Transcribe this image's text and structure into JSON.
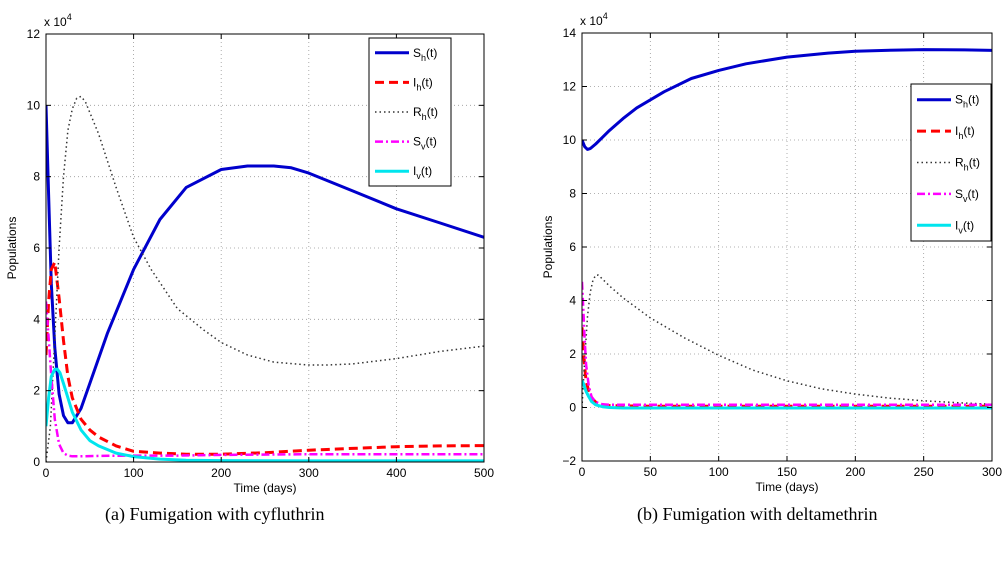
{
  "charts": [
    {
      "caption": "(a)  Fumigation with cyfluthrin",
      "chart_data": {
        "type": "line",
        "xlabel": "Time (days)",
        "ylabel": "Populations",
        "exponent_label": "x 10",
        "exponent_power": "4",
        "xlim": [
          0,
          500
        ],
        "ylim": [
          0,
          12
        ],
        "xticks": [
          0,
          100,
          200,
          300,
          400,
          500
        ],
        "yticks": [
          0,
          2,
          4,
          6,
          8,
          10,
          12
        ],
        "grid": true,
        "legend_position": "top-right",
        "series": [
          {
            "name": "S",
            "sub": "h",
            "suffix": "(t)",
            "color": "#0000cc",
            "style": "solid",
            "x": [
              0,
              3,
              6,
              10,
              15,
              20,
              25,
              30,
              40,
              50,
              70,
              100,
              130,
              160,
              200,
              230,
              260,
              280,
              300,
              350,
              400,
              450,
              500
            ],
            "y": [
              10,
              7.5,
              5,
              3.2,
              1.9,
              1.3,
              1.1,
              1.1,
              1.5,
              2.2,
              3.6,
              5.4,
              6.8,
              7.7,
              8.2,
              8.3,
              8.3,
              8.25,
              8.1,
              7.6,
              7.1,
              6.7,
              6.3
            ]
          },
          {
            "name": "I",
            "sub": "h",
            "suffix": "(t)",
            "color": "#ff0000",
            "style": "dashed",
            "x": [
              0,
              3,
              6,
              10,
              15,
              20,
              25,
              30,
              40,
              50,
              60,
              80,
              100,
              130,
              160,
              200,
              250,
              300,
              350,
              400,
              450,
              500
            ],
            "y": [
              3,
              4.5,
              5.4,
              5.6,
              4.6,
              3.4,
              2.4,
              1.8,
              1.2,
              0.9,
              0.7,
              0.45,
              0.3,
              0.25,
              0.22,
              0.22,
              0.26,
              0.33,
              0.38,
              0.43,
              0.45,
              0.46
            ]
          },
          {
            "name": "R",
            "sub": "h",
            "suffix": "(t)",
            "color": "#333333",
            "style": "dotted",
            "x": [
              0,
              5,
              10,
              15,
              20,
              25,
              30,
              35,
              40,
              45,
              50,
              60,
              80,
              100,
              120,
              150,
              180,
              200,
              230,
              260,
              300,
              320,
              350,
              400,
              450,
              500
            ],
            "y": [
              0,
              1,
              3.5,
              6,
              8,
              9.3,
              9.9,
              10.2,
              10.25,
              10.1,
              9.8,
              9.2,
              7.7,
              6.3,
              5.4,
              4.3,
              3.7,
              3.35,
              3,
              2.8,
              2.72,
              2.72,
              2.75,
              2.9,
              3.1,
              3.25
            ]
          },
          {
            "name": "S",
            "sub": "v",
            "suffix": "(t)",
            "color": "#ff00ff",
            "style": "dashdot",
            "x": [
              0,
              3,
              6,
              10,
              15,
              20,
              25,
              30,
              40,
              60,
              100,
              150,
              200,
              300,
              400,
              500
            ],
            "y": [
              4.5,
              3.5,
              2.4,
              1.2,
              0.5,
              0.25,
              0.18,
              0.16,
              0.16,
              0.17,
              0.18,
              0.18,
              0.2,
              0.22,
              0.22,
              0.22
            ]
          },
          {
            "name": "I",
            "sub": "v",
            "suffix": "(t)",
            "color": "#00e5ee",
            "style": "solid",
            "x": [
              0,
              3,
              6,
              10,
              13,
              16,
              20,
              25,
              30,
              40,
              50,
              60,
              80,
              100,
              130,
              160,
              200,
              300,
              400,
              500
            ],
            "y": [
              1,
              1.8,
              2.4,
              2.6,
              2.6,
              2.5,
              2.2,
              1.8,
              1.4,
              0.9,
              0.6,
              0.45,
              0.25,
              0.15,
              0.08,
              0.05,
              0.04,
              0.03,
              0.03,
              0.03
            ]
          }
        ]
      }
    },
    {
      "caption": "(b)  Fumigation with deltamethrin",
      "chart_data": {
        "type": "line",
        "xlabel": "Time (days)",
        "ylabel": "Populations",
        "exponent_label": "x 10",
        "exponent_power": "4",
        "xlim": [
          0,
          300
        ],
        "ylim": [
          -2,
          14
        ],
        "xticks": [
          0,
          50,
          100,
          150,
          200,
          250,
          300
        ],
        "yticks": [
          -2,
          0,
          2,
          4,
          6,
          8,
          10,
          12,
          14
        ],
        "grid": true,
        "legend_position": "upper-right",
        "series": [
          {
            "name": "S",
            "sub": "h",
            "suffix": "(t)",
            "color": "#0000cc",
            "style": "solid",
            "x": [
              0,
              2,
              4,
              6,
              10,
              15,
              20,
              30,
              40,
              60,
              80,
              100,
              120,
              150,
              180,
              200,
              230,
              250,
              280,
              300
            ],
            "y": [
              10,
              9.75,
              9.65,
              9.68,
              9.85,
              10.1,
              10.35,
              10.8,
              11.2,
              11.8,
              12.3,
              12.6,
              12.85,
              13.1,
              13.25,
              13.32,
              13.36,
              13.38,
              13.37,
              13.35
            ]
          },
          {
            "name": "I",
            "sub": "h",
            "suffix": "(t)",
            "color": "#ff0000",
            "style": "dashed",
            "x": [
              0,
              1,
              2,
              3,
              5,
              7,
              10,
              15,
              20,
              30,
              50,
              100,
              150,
              200,
              250,
              300
            ],
            "y": [
              3,
              2.2,
              1.5,
              1,
              0.6,
              0.35,
              0.2,
              0.1,
              0.07,
              0.06,
              0.05,
              0.05,
              0.05,
              0.05,
              0.05,
              0.05
            ]
          },
          {
            "name": "R",
            "sub": "h",
            "suffix": "(t)",
            "color": "#333333",
            "style": "dotted",
            "x": [
              0,
              2,
              4,
              6,
              8,
              10,
              12,
              15,
              20,
              30,
              50,
              75,
              100,
              125,
              150,
              175,
              200,
              225,
              250,
              275,
              300
            ],
            "y": [
              0,
              1.8,
              3.4,
              4.3,
              4.75,
              4.95,
              4.95,
              4.8,
              4.55,
              4.1,
              3.35,
              2.6,
              1.95,
              1.4,
              1,
              0.7,
              0.5,
              0.35,
              0.25,
              0.18,
              0.12
            ]
          },
          {
            "name": "S",
            "sub": "v",
            "suffix": "(t)",
            "color": "#ff00ff",
            "style": "dashdot",
            "x": [
              0,
              1,
              2,
              3,
              5,
              7,
              10,
              15,
              20,
              30,
              50,
              100,
              200,
              300
            ],
            "y": [
              4.7,
              3.6,
              2.5,
              1.6,
              0.8,
              0.4,
              0.2,
              0.12,
              0.1,
              0.1,
              0.1,
              0.1,
              0.1,
              0.1
            ]
          },
          {
            "name": "I",
            "sub": "v",
            "suffix": "(t)",
            "color": "#00e5ee",
            "style": "solid",
            "x": [
              0,
              1,
              2,
              3,
              5,
              7,
              10,
              15,
              20,
              30,
              50,
              100,
              200,
              300
            ],
            "y": [
              1,
              0.9,
              0.75,
              0.6,
              0.4,
              0.22,
              0.1,
              0.03,
              0,
              -0.02,
              -0.02,
              -0.02,
              -0.02,
              -0.02
            ]
          }
        ]
      }
    }
  ]
}
